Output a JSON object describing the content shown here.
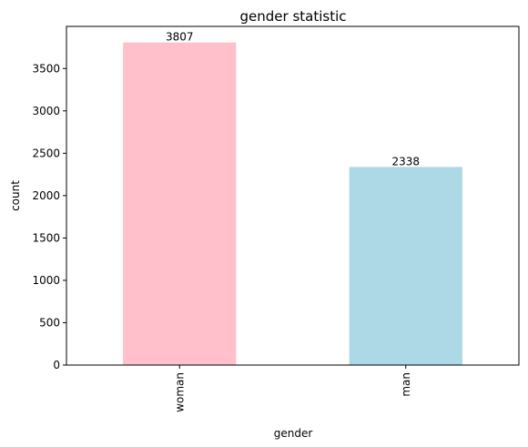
{
  "chart_data": {
    "type": "bar",
    "title": "gender statistic",
    "xlabel": "gender",
    "ylabel": "count",
    "categories": [
      "woman",
      "man"
    ],
    "values": [
      3807,
      2338
    ],
    "data_labels": [
      "3807",
      "2338"
    ],
    "colors": [
      "#ffc0cb",
      "#add8e6"
    ],
    "ylim": [
      0,
      3997
    ],
    "yticks": [
      0,
      500,
      1000,
      1500,
      2000,
      2500,
      3000,
      3500
    ],
    "ytick_labels": [
      "0",
      "500",
      "1000",
      "1500",
      "2000",
      "2500",
      "3000",
      "3500"
    ],
    "grid": false,
    "legend": "none"
  }
}
